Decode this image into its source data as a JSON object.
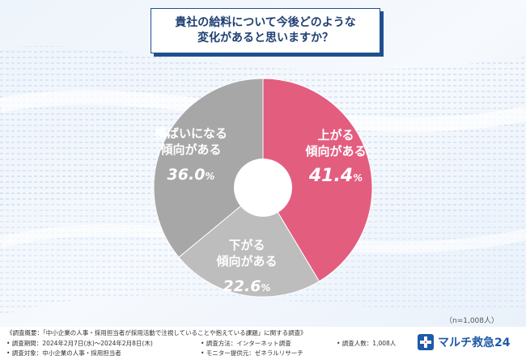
{
  "title": {
    "line1": "貴社の給料について今後どのような",
    "line2": "変化があると思いますか？"
  },
  "chart_data": {
    "type": "pie",
    "title": "貴社の給料について今後どのような変化があると思いますか？",
    "slices": [
      {
        "line1": "上がる",
        "line2": "傾向がある",
        "value": 41.4,
        "num": "41.4",
        "unit": "%",
        "color": "#e35d7f"
      },
      {
        "line1": "下がる",
        "line2": "傾向がある",
        "value": 22.6,
        "num": "22.6",
        "unit": "%",
        "color": "#bdbdbd"
      },
      {
        "line1": "横ばいになる",
        "line2": "傾向がある",
        "value": 36.0,
        "num": "36.0",
        "unit": "%",
        "color": "#a7a7a7"
      }
    ]
  },
  "sample_size": "（n=1,008人）",
  "footer": {
    "overview": "《調査概要：「中小企業の人事・採用担当者が採用活動で注視していることや抱えている課題」に関する調査》",
    "period": "• 調査期間：2024年2月7日(水)～2024年2月8日(木)",
    "method": "• 調査方法：インターネット調査",
    "count": "• 調査人数：1,008人",
    "target": "• 調査対象：中小企業の人事・採用担当者",
    "provider": "• モニター提供元：ゼネラルリサーチ"
  },
  "brand": {
    "name": "マルチ救急24",
    "color": "#1e5aa8"
  }
}
